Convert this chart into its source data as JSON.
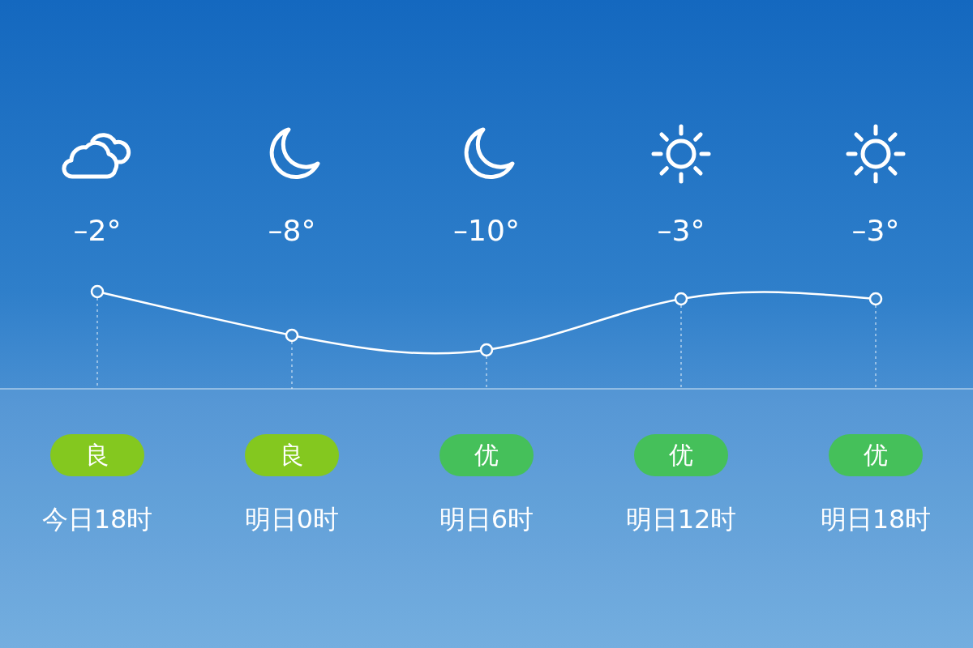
{
  "chart_data": {
    "type": "line",
    "categories": [
      "今日18时",
      "明日0时",
      "明日6时",
      "明日12时",
      "明日18时"
    ],
    "series": [
      {
        "color": "#ffffff",
        "values": [
          -2,
          -8,
          -10,
          -3,
          -3
        ],
        "value_labels": [
          "–2°",
          "–8°",
          "–10°",
          "–3°",
          "–3°"
        ]
      }
    ],
    "marker": "circle",
    "line_style": "solid",
    "tick_labels": "x",
    "grid": "x",
    "annotations": [
      "良",
      "良",
      "优",
      "优",
      "优"
    ]
  }
}
